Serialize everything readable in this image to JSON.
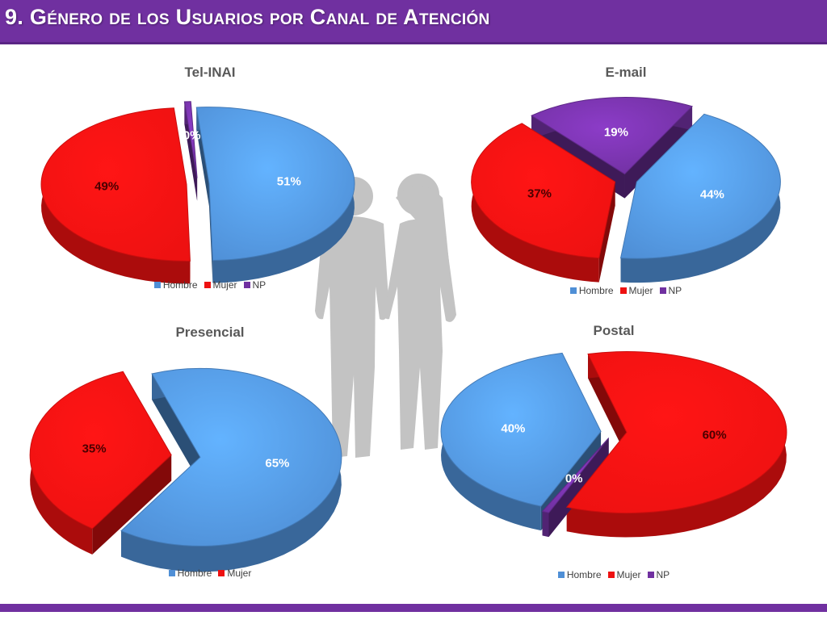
{
  "header": {
    "title": "9. Género de los Usuarios por Canal de Atención",
    "bar_color": "#7030a0"
  },
  "colors": {
    "Hombre": "#4f8fd6",
    "Mujer": "#ee1111",
    "NP": "#7030a0"
  },
  "decoration": {
    "name": "people-silhouette-icon"
  },
  "chart_data": [
    {
      "type": "pie",
      "title": "Tel-INAI",
      "categories": [
        "Hombre",
        "Mujer",
        "NP"
      ],
      "values": [
        51,
        49,
        0
      ],
      "labels": [
        "51%",
        "49%",
        "0%"
      ],
      "legend": [
        "Hombre",
        "Mujer",
        "NP"
      ]
    },
    {
      "type": "pie",
      "title": "E-mail",
      "categories": [
        "Hombre",
        "Mujer",
        "NP"
      ],
      "values": [
        44,
        37,
        19
      ],
      "labels": [
        "44%",
        "37%",
        "19%"
      ],
      "legend": [
        "Hombre",
        "Mujer",
        "NP"
      ]
    },
    {
      "type": "pie",
      "title": "Presencial",
      "categories": [
        "Hombre",
        "Mujer"
      ],
      "values": [
        65,
        35
      ],
      "labels": [
        "65%",
        "35%"
      ],
      "legend": [
        "Hombre",
        "Mujer"
      ]
    },
    {
      "type": "pie",
      "title": "Postal",
      "categories": [
        "Hombre",
        "Mujer",
        "NP"
      ],
      "values": [
        40,
        60,
        0
      ],
      "labels": [
        "40%",
        "60%",
        "0%"
      ],
      "legend": [
        "Hombre",
        "Mujer",
        "NP"
      ]
    }
  ]
}
